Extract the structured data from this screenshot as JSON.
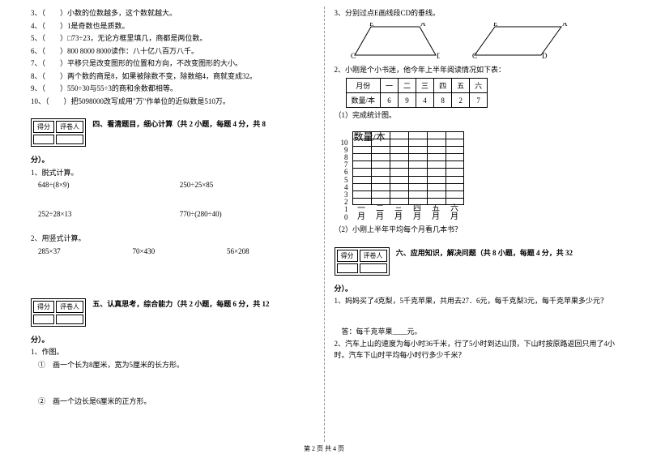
{
  "left": {
    "tf": [
      "3、（　　）小数的位数越多，这个数就越大。",
      "4、（　　）1是奇数也是质数。",
      "5、（　　）□73÷23，无论方框里填几，商都是两位数。",
      "6、（　　）800 8000 8000读作：八十亿八百万八千。",
      "7、（　　）平移只是改变图形的位置和方向，不改变图形的大小。",
      "8、（　　）两个数的商是8，如果被除数不变，除数缩4，商就变成32。",
      "9、（　　）550÷30与55÷3的商和余数都相等。",
      "10、（　　）把5098000改写成用\"万\"作单位的近似数是510万。"
    ],
    "score_label1": "得分",
    "score_label2": "评卷人",
    "section4_title": "四、看清题目，细心计算（共 2 小题，每题 4 分，共 8",
    "fen": "分）。",
    "q1": "1、脱式计算。",
    "c1a": "648÷(8×9)",
    "c1b": "250÷25×85",
    "c2a": "252÷28×13",
    "c2b": "770÷(280÷40)",
    "q2": "2、用竖式计算。",
    "c3a": "285×37",
    "c3b": "70×430",
    "c3c": "56×208",
    "section5_title": "五、认真思考，综合能力（共 2 小题，每题 6 分，共 12",
    "q5_1": "1、作图。",
    "q5_1a": "①　画一个长为8厘米，宽为5厘米的长方形。",
    "q5_1b": "②　画一个边长是6厘米的正方形。"
  },
  "right": {
    "q3": "3、分别过点E画线段CD的垂线。",
    "q2_title": "2、小刚是个小书迷，他今年上半年阅读情况如下表：",
    "table_head": [
      "月份",
      "一",
      "二",
      "三",
      "四",
      "五",
      "六"
    ],
    "table_row": [
      "数量/本",
      "6",
      "9",
      "4",
      "8",
      "2",
      "7"
    ],
    "q2_1": "（1）完成统计图。",
    "chart_title": "数量/本",
    "y_labels": [
      "10",
      "9",
      "8",
      "7",
      "6",
      "5",
      "4",
      "3",
      "2",
      "1",
      "0"
    ],
    "x_labels": [
      "一月",
      "二月",
      "三月",
      "四月",
      "五月",
      "六月"
    ],
    "q2_2": "（2）小刚上半年平均每个月看几本书？",
    "score_label1": "得分",
    "score_label2": "评卷人",
    "section6_title": "六、应用知识，解决问题（共 8 小题，每题 4 分，共 32",
    "fen": "分）。",
    "q6_1": "1、妈妈买了4克梨，5千克苹果，共用去27．6元，每千克梨3元，每千克苹果多少元？",
    "q6_1_ans": "答：每千克苹果____元。",
    "q6_2": "2、汽车上山的速度为每小时36千米，行了5小时到达山顶，下山时按原路返回只用了4小时。汽车下山时平均每小时行多少千米？"
  },
  "footer": "第 2 页 共 4 页"
}
